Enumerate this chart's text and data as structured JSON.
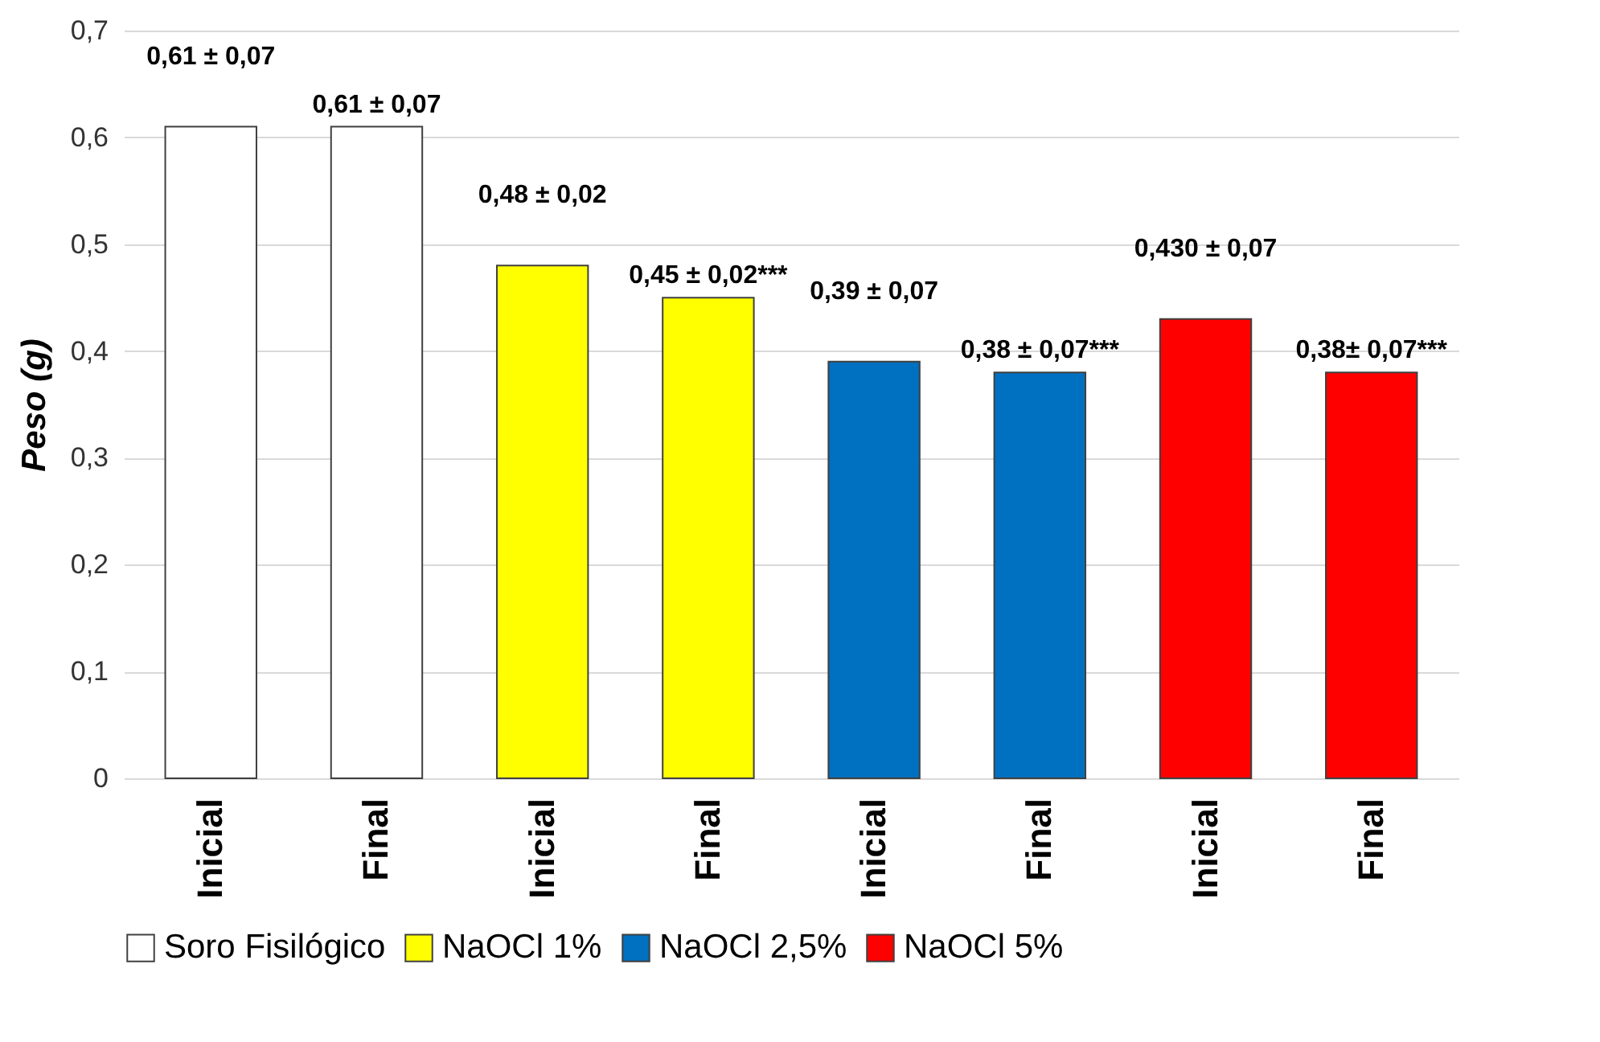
{
  "chart_data": {
    "type": "bar",
    "categories": [
      "Inicial",
      "Final",
      "Inicial",
      "Final",
      "Inicial",
      "Final",
      "Inicial",
      "Final"
    ],
    "ylabel": "Peso (g)",
    "ylim": [
      0,
      0.7
    ],
    "yticks": [
      0,
      {
        "value": 0.1,
        "label": "0,1"
      },
      {
        "value": 0.2,
        "label": "0,2"
      },
      {
        "value": 0.3,
        "label": "0,3"
      },
      {
        "value": 0.4,
        "label": "0,4"
      },
      {
        "value": 0.5,
        "label": "0,5"
      },
      {
        "value": 0.6,
        "label": "0,6"
      },
      {
        "value": 0.7,
        "label": "0,7"
      }
    ],
    "grid": "y",
    "legend": "bottom",
    "series": [
      {
        "name": "Soro Fisilógico",
        "color": "#ffffff",
        "values": [
          0.61,
          0.61,
          null,
          null,
          null,
          null,
          null,
          null
        ],
        "value_labels": [
          "0,61 ± 0,07",
          "0,61 ± 0,07",
          null,
          null,
          null,
          null,
          null,
          null
        ]
      },
      {
        "name": "NaOCl 1%",
        "color": "#ffff00",
        "values": [
          null,
          null,
          0.48,
          0.45,
          null,
          null,
          null,
          null
        ],
        "value_labels": [
          null,
          null,
          "0,48 ± 0,02",
          "0,45 ± 0,02***",
          null,
          null,
          null,
          null
        ]
      },
      {
        "name": "NaOCl 2,5%",
        "color": "#0070c0",
        "values": [
          null,
          null,
          null,
          null,
          0.39,
          0.38,
          null,
          null
        ],
        "value_labels": [
          null,
          null,
          null,
          null,
          "0,39 ± 0,07",
          "0,38 ± 0,07***",
          null,
          null
        ]
      },
      {
        "name": "NaOCl 5%",
        "color": "#ff0000",
        "values": [
          null,
          null,
          null,
          null,
          null,
          null,
          0.43,
          0.38
        ],
        "value_labels": [
          null,
          null,
          null,
          null,
          null,
          null,
          "0,430 ± 0,07",
          "0,38± 0,07***"
        ]
      }
    ]
  }
}
